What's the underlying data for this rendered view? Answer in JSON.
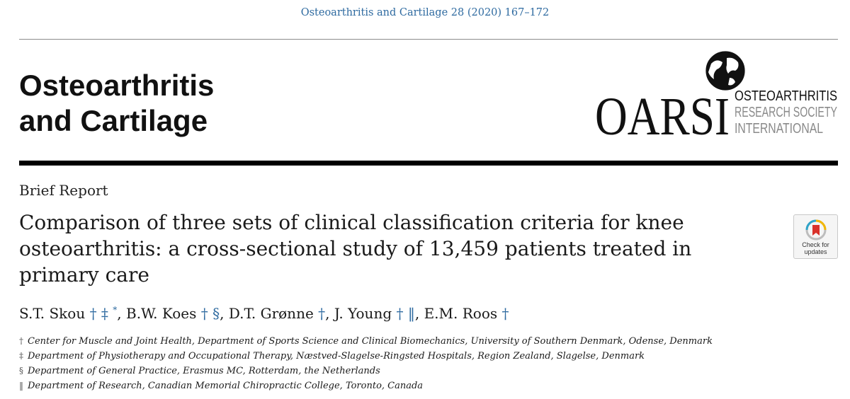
{
  "header": {
    "citation": "Osteoarthritis and Cartilage 28 (2020) 167–172",
    "journal_title_line1": "Osteoarthritis",
    "journal_title_line2": "and Cartilage"
  },
  "logo": {
    "abbrev": "OARSI",
    "line1": "OSTEOARTHRITIS",
    "line2": "RESEARCH SOCIETY",
    "line3": "INTERNATIONAL",
    "icon": "globe-icon"
  },
  "article": {
    "type": "Brief Report",
    "title": "Comparison of three sets of clinical classification criteria for knee osteoarthritis: a cross-sectional study of 13,459 patients treated in primary care"
  },
  "badge": {
    "line1": "Check for",
    "line2": "updates",
    "icon": "bookmark-icon"
  },
  "authors": [
    {
      "name": "S.T. Skou",
      "marks": "† ‡",
      "corresponding": "*",
      "sep": ", "
    },
    {
      "name": "B.W. Koes",
      "marks": "† §",
      "corresponding": "",
      "sep": ", "
    },
    {
      "name": "D.T. Grønne",
      "marks": "†",
      "corresponding": "",
      "sep": ", "
    },
    {
      "name": "J. Young",
      "marks": "† ‖",
      "corresponding": "",
      "sep": ", "
    },
    {
      "name": "E.M. Roos",
      "marks": "†",
      "corresponding": "",
      "sep": ""
    }
  ],
  "affiliations": [
    {
      "symbol": "†",
      "text": "Center for Muscle and Joint Health, Department of Sports Science and Clinical Biomechanics, University of Southern Denmark, Odense, Denmark"
    },
    {
      "symbol": "‡",
      "text": "Department of Physiotherapy and Occupational Therapy, Næstved-Slagelse-Ringsted Hospitals, Region Zealand, Slagelse, Denmark"
    },
    {
      "symbol": "§",
      "text": "Department of General Practice, Erasmus MC, Rotterdam, the Netherlands"
    },
    {
      "symbol": "‖",
      "text": "Department of Research, Canadian Memorial Chiropractic College, Toronto, Canada"
    }
  ],
  "colors": {
    "link": "#2e6aa0",
    "rule": "#000000"
  }
}
